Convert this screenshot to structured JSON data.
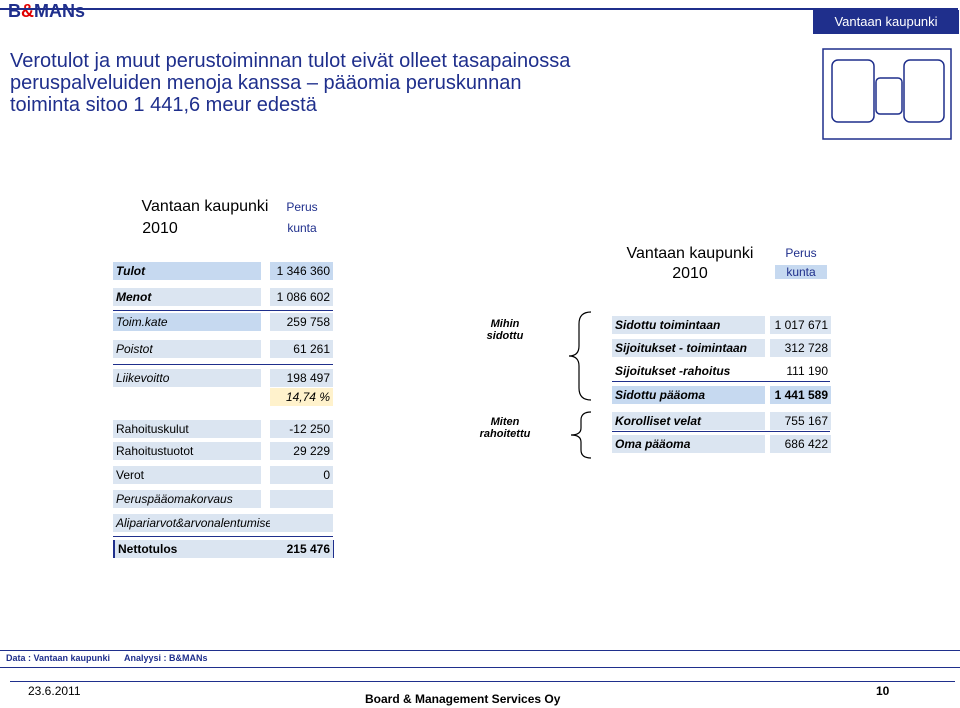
{
  "brand": {
    "prefix": "B",
    "amp": "&",
    "suffix": "MANs"
  },
  "header_right": "Vantaan kaupunki",
  "title": [
    "Verotulot ja muut perustoiminnan tulot eivät olleet tasapainossa",
    "peruspalveluiden menoja kanssa – pääomia peruskunnan",
    "toiminta sitoo 1 441,6 meur edestä"
  ],
  "left_table": {
    "head_entity": "Vantaan kaupunki",
    "head_year": "2010",
    "head_col1": "Perus",
    "head_col2": "kunta",
    "rows": [
      {
        "label": "Tulot",
        "value": "1 346 360"
      },
      {
        "label": "Menot",
        "value": "1 086 602"
      },
      {
        "label": "Toim.kate",
        "value": "259 758"
      },
      {
        "label": "Poistot",
        "value": "61 261"
      },
      {
        "label": "Liikevoitto",
        "value": "198 497"
      },
      {
        "label": "",
        "value": "14,74 %"
      },
      {
        "label": "Rahoituskulut",
        "value": "-12 250"
      },
      {
        "label": "Rahoitustuotot",
        "value": "29 229"
      },
      {
        "label": "Verot",
        "value": "0"
      },
      {
        "label": "Peruspääomakorvaus",
        "value": ""
      },
      {
        "label": "Alipariarvot&arvonalentumiset",
        "value": ""
      },
      {
        "label": "Nettotulos",
        "value": "215 476"
      }
    ]
  },
  "right_table": {
    "head_entity": "Vantaan kaupunki",
    "head_year": "2010",
    "head_col1": "Perus",
    "head_col2": "kunta",
    "group1_label": "Mihin sidottu",
    "group2_label": "Miten rahoitettu",
    "rows": [
      {
        "label": "Sidottu toimintaan",
        "value": "1 017 671"
      },
      {
        "label": "Sijoitukset - toimintaan",
        "value": "312 728"
      },
      {
        "label": "Sijoitukset -rahoitus",
        "value": "111 190"
      },
      {
        "label": "Sidottu pääoma",
        "value": "1 441 589"
      },
      {
        "label": "Korolliset velat",
        "value": "755 167"
      },
      {
        "label": "Oma pääoma",
        "value": "686 422"
      }
    ]
  },
  "footer": {
    "data_source": "Data : Vantaan kaupunki",
    "analysis": "Analyysi : B&MANs",
    "date": "23.6.2011",
    "company": "Board & Management Services Oy",
    "page": "10"
  }
}
